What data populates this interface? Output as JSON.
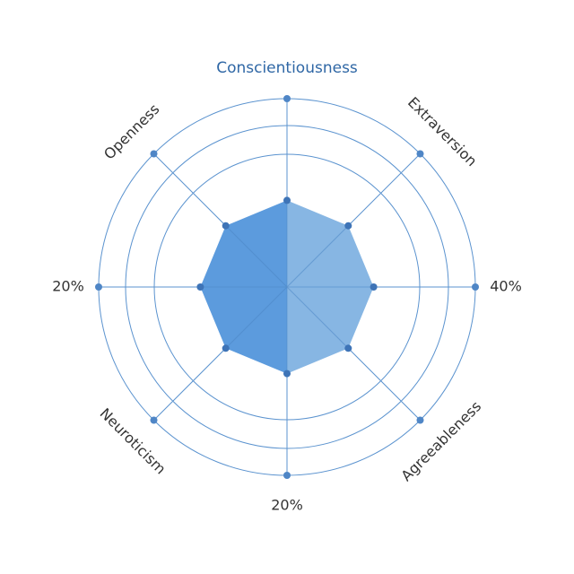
{
  "chart_data": {
    "type": "radar",
    "categories": [
      "Conscientiousness",
      "Extraversion",
      "40%",
      "Agreeableness",
      "20%",
      "Neuroticism",
      "20%",
      "Openness"
    ],
    "highlighted_category": "Conscientiousness",
    "values": [
      0.46,
      0.46,
      0.46,
      0.46,
      0.46,
      0.46,
      0.46,
      0.46
    ],
    "rings": 4,
    "colors": {
      "grid": "#5b93cf",
      "fill_left": "#4a90d9",
      "fill_right": "#7aaee0",
      "point": "#3e74b7",
      "label": "#333333",
      "highlight_label": "#2f67a5"
    }
  }
}
